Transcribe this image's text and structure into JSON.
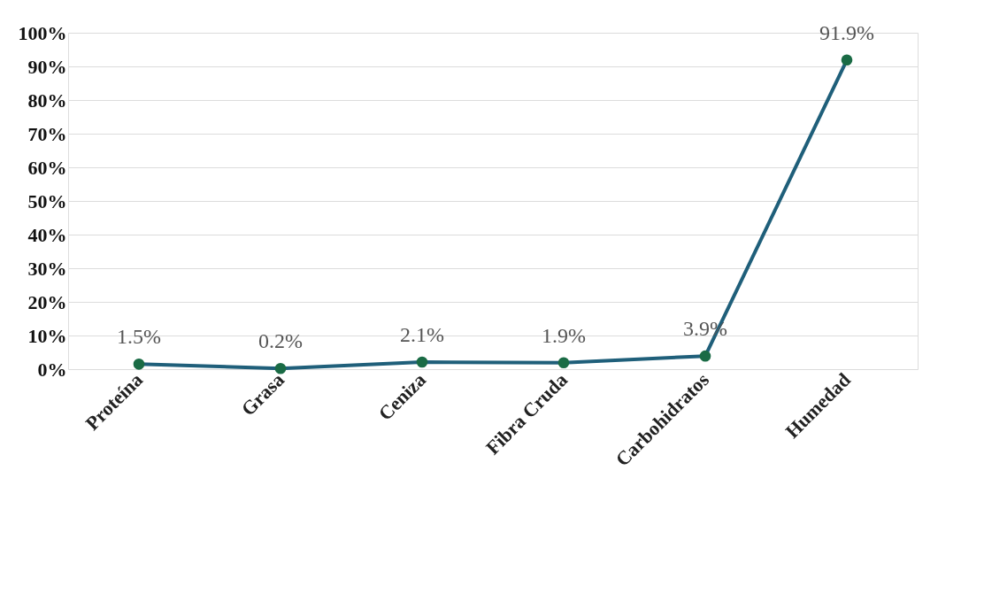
{
  "chart_data": {
    "type": "line",
    "categories": [
      "Proteína",
      "Grasa",
      "Ceniza",
      "Fibra Cruda",
      "Carbohidratos",
      "Humedad"
    ],
    "series": [
      {
        "color": "#1f5f7a",
        "values": [
          1.5,
          0.2,
          2.1,
          1.9,
          3.9,
          91.9
        ],
        "value_labels": [
          "1.5%",
          "0.2%",
          "2.1%",
          "1.9%",
          "3.9%",
          "91.9%"
        ]
      }
    ],
    "ylim": [
      0,
      100
    ],
    "yticks": [
      {
        "value": 0,
        "label": "0%"
      },
      {
        "value": 10,
        "label": "10%"
      },
      {
        "value": 20,
        "label": "20%"
      },
      {
        "value": 30,
        "label": "30%"
      },
      {
        "value": 40,
        "label": "40%"
      },
      {
        "value": 50,
        "label": "50%"
      },
      {
        "value": 60,
        "label": "60%"
      },
      {
        "value": 70,
        "label": "70%"
      },
      {
        "value": 80,
        "label": "80%"
      },
      {
        "value": 90,
        "label": "90%"
      },
      {
        "value": 100,
        "label": "100%"
      }
    ],
    "grid": "y",
    "marker": "circle"
  }
}
